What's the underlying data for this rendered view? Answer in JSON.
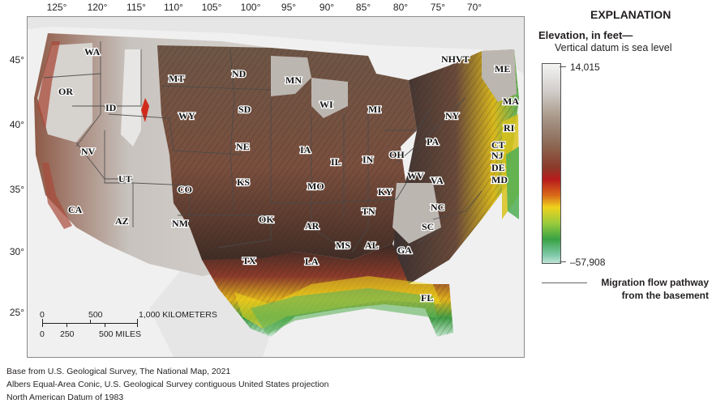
{
  "map": {
    "longitude_ticks": [
      "125°",
      "120°",
      "115°",
      "110°",
      "105°",
      "100°",
      "95°",
      "90°",
      "85°",
      "80°",
      "75°",
      "70°"
    ],
    "latitude_ticks": [
      "45°",
      "40°",
      "35°",
      "30°",
      "25°"
    ],
    "states": [
      "WA",
      "OR",
      "ID",
      "MT",
      "ND",
      "MN",
      "WI",
      "MI",
      "NY",
      "NHVT",
      "ME",
      "MA",
      "RI",
      "CT",
      "NJ",
      "DE",
      "MD",
      "PA",
      "OH",
      "IN",
      "IL",
      "IA",
      "SD",
      "WY",
      "NE",
      "NV",
      "UT",
      "CO",
      "KS",
      "MO",
      "KY",
      "WV",
      "VA",
      "NC",
      "TN",
      "SC",
      "GA",
      "AL",
      "MS",
      "AR",
      "LA",
      "OK",
      "TX",
      "NM",
      "AZ",
      "CA",
      "FL"
    ]
  },
  "scale_bar": {
    "km_labels": [
      "0",
      "500",
      "1,000 KILOMETERS"
    ],
    "mile_labels": [
      "0",
      "250",
      "500 MILES"
    ]
  },
  "credits": [
    "Base from U.S. Geological Survey, The National Map, 2021",
    "Albers Equal-Area Conic, U.S. Geological Survey contiguous United States projection",
    "North American Datum of 1983"
  ],
  "legend": {
    "heading": "EXPLANATION",
    "elevation_title": "Elevation, in feet—",
    "datum_note": "Vertical datum is sea level",
    "max_value": "14,015",
    "min_value": "–57,908",
    "flow_label_line1": "Migration flow pathway",
    "flow_label_line2": "from the basement"
  },
  "colors": {
    "elevation_high": "#f4f4f4",
    "elevation_mid": "#8c6b56",
    "elevation_red": "#b81c1c",
    "elevation_yellow": "#efd21c",
    "elevation_green": "#39a244",
    "elevation_low": "#bfe4d6",
    "non_study_area": "#bcb6b1",
    "flow_pathway": "#666666"
  }
}
